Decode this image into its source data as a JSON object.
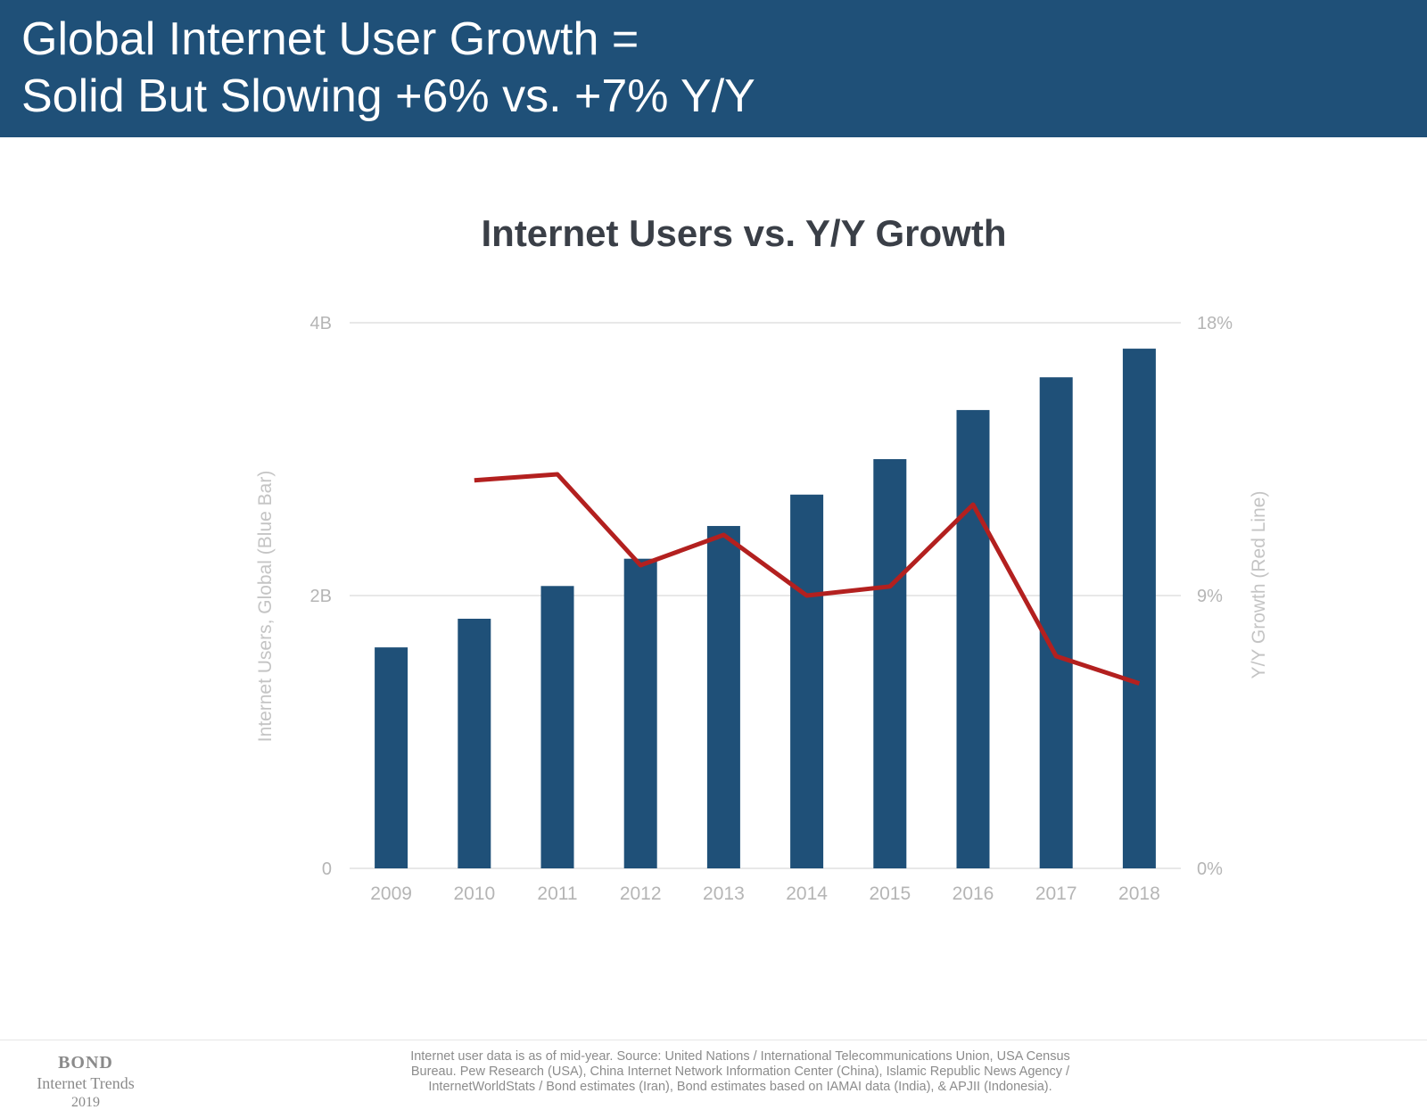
{
  "header": {
    "title_line1": "Global Internet User Growth =",
    "title_line2": "Solid But Slowing +6% vs. +7% Y/Y"
  },
  "colors": {
    "header_bg": "#1f5078",
    "bar": "#1f5078",
    "line": "#b3201f",
    "gridline": "#e0e0e0",
    "axis_text": "#b5b5b5"
  },
  "chart_data": {
    "type": "bar",
    "title": "Internet Users vs. Y/Y Growth",
    "categories": [
      "2009",
      "2010",
      "2011",
      "2012",
      "2013",
      "2014",
      "2015",
      "2016",
      "2017",
      "2018"
    ],
    "series": [
      {
        "name": "Internet Users, Global (Blue Bar)",
        "type": "bar",
        "axis": "left",
        "values": [
          1.62,
          1.83,
          2.07,
          2.27,
          2.51,
          2.74,
          3.0,
          3.36,
          3.6,
          3.81
        ]
      },
      {
        "name": "Y/Y Growth (Red Line)",
        "type": "line",
        "axis": "right",
        "values": [
          null,
          12.8,
          13.0,
          10.0,
          11.0,
          9.0,
          9.3,
          12.0,
          7.0,
          6.1
        ]
      }
    ],
    "ylabel": "Internet Users, Global (Blue Bar)",
    "y2label": "Y/Y Growth (Red Line)",
    "ylim": [
      0,
      4
    ],
    "y2lim": [
      0,
      18
    ],
    "yticks": [
      {
        "value": 0,
        "label": "0"
      },
      {
        "value": 2,
        "label": "2B"
      },
      {
        "value": 4,
        "label": "4B"
      }
    ],
    "y2ticks": [
      {
        "value": 0,
        "label": "0%"
      },
      {
        "value": 9,
        "label": "9%"
      },
      {
        "value": 18,
        "label": "18%"
      }
    ],
    "grid": true,
    "legend": "none"
  },
  "footer": {
    "logo_brand": "BOND",
    "logo_sub": "Internet Trends",
    "logo_year": "2019",
    "source_lines": [
      "Internet user data is as of mid-year.  Source: United Nations / International Telecommunications Union, USA Census",
      "Bureau. Pew Research (USA), China Internet Network Information Center (China), Islamic Republic News Agency /",
      "InternetWorldStats / Bond estimates (Iran), Bond estimates based on IAMAI data (India), & APJII (Indonesia)."
    ]
  }
}
